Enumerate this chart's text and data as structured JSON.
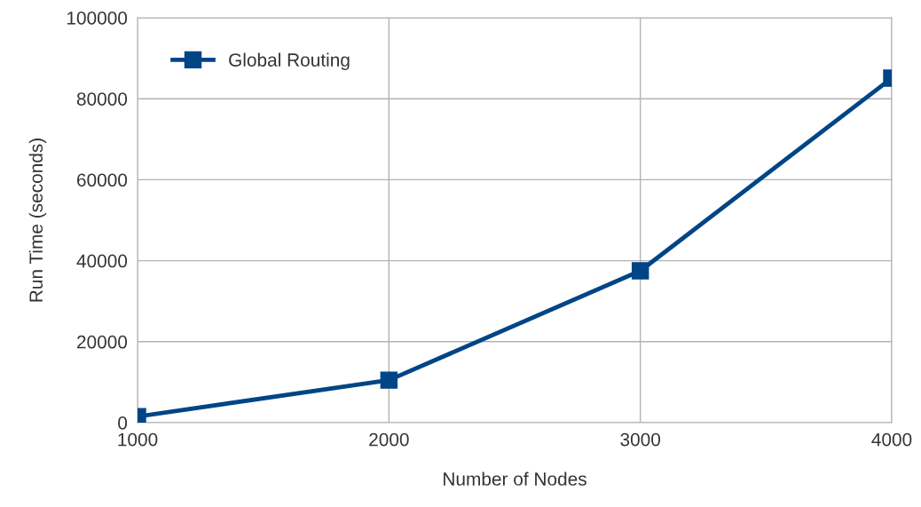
{
  "chart_data": {
    "type": "line",
    "xlabel": "Number of Nodes",
    "ylabel": "Run Time (seconds)",
    "x": [
      1000,
      2000,
      3000,
      4000
    ],
    "series": [
      {
        "name": "Global Routing",
        "color": "#004586",
        "values": [
          1500,
          10500,
          37500,
          85100
        ]
      }
    ],
    "xlim": [
      1000,
      4000
    ],
    "xticks": [
      1000,
      2000,
      3000,
      4000
    ],
    "ylim": [
      0,
      100000
    ],
    "yticks": [
      0,
      20000,
      40000,
      60000,
      80000,
      100000
    ],
    "grid": true,
    "legend": "top left",
    "marker": "square",
    "line_style": "solid"
  }
}
